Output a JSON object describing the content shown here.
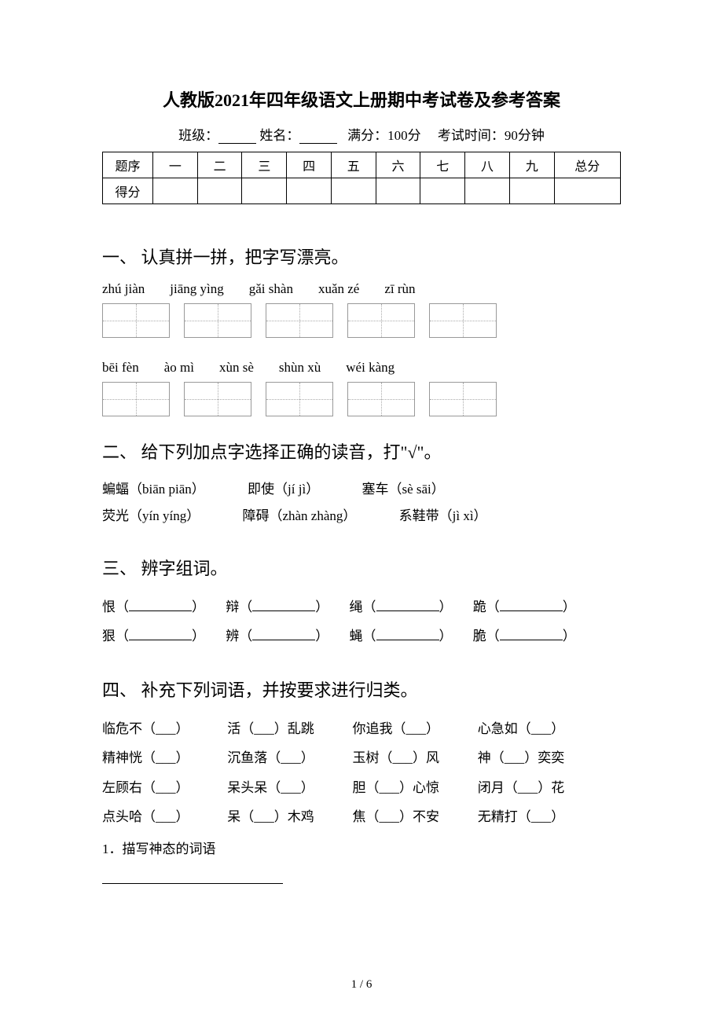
{
  "title": "人教版2021年四年级语文上册期中考试卷及参考答案",
  "meta": {
    "class_label": "班级：",
    "name_label": "姓名：",
    "fullscore_label": "满分：100分",
    "time_label": "考试时间：90分钟"
  },
  "score_table": {
    "row1_label": "题序",
    "cols": [
      "一",
      "二",
      "三",
      "四",
      "五",
      "六",
      "七",
      "八",
      "九",
      "总分"
    ],
    "row2_label": "得分"
  },
  "section1": {
    "header": "一、 认真拼一拼，把字写漂亮。",
    "pinyin_row1": [
      "zhú jiàn",
      "jiāng yìng",
      "gǎi shàn",
      "xuǎn zé",
      "zī rùn"
    ],
    "pinyin_row2": [
      "bēi fèn",
      "ào mì",
      "xùn sè",
      "shùn xù",
      "wéi kàng"
    ]
  },
  "section2": {
    "header": "二、 给下列加点字选择正确的读音，打\"√\"。",
    "items": [
      [
        "蝙蝠（biān piān）",
        "即使（jí jì）",
        "塞车（sè sāi）"
      ],
      [
        "荧光（yín yíng）",
        "障碍（zhàn zhàng）",
        "系鞋带（jì xì）"
      ]
    ]
  },
  "section3": {
    "header": "三、 辨字组词。",
    "pairs": [
      [
        "恨",
        "辩",
        "绳",
        "跪"
      ],
      [
        "狠",
        "辨",
        "蝇",
        "脆"
      ]
    ]
  },
  "section4": {
    "header": "四、 补充下列词语，并按要求进行归类。",
    "rows": [
      [
        "临危不（___）",
        "活（___）乱跳",
        "你追我（___）",
        "心急如（___）"
      ],
      [
        "精神恍（___）",
        "沉鱼落（___）",
        "玉树（___）风",
        "神（___）奕奕"
      ],
      [
        "左顾右（___）",
        "呆头呆（___）",
        "胆（___）心惊",
        "闭月（___）花"
      ],
      [
        "点头哈（___）",
        "呆（___）木鸡",
        "焦（___）不安",
        "无精打（___）"
      ]
    ],
    "note1": "1．描写神态的词语"
  },
  "page_number": "1 / 6",
  "colors": {
    "text": "#000000",
    "bg": "#ffffff",
    "box_border": "#999999",
    "dotted": "#aaaaaa"
  }
}
